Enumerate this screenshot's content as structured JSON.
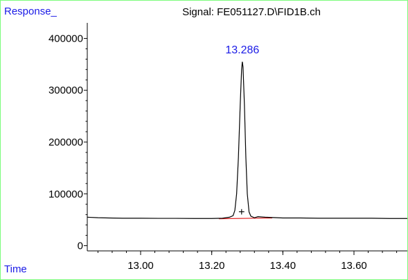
{
  "window": {
    "border_color": "#7CFC7C"
  },
  "chart_data": {
    "type": "line",
    "title": "Signal: FE051127.D\\FID1B.ch",
    "ylabel": "Response_",
    "xlabel": "Time",
    "xlim": [
      12.85,
      13.75
    ],
    "ylim": [
      -10000,
      430000
    ],
    "x_ticks": [
      "13.00",
      "13.20",
      "13.40",
      "13.60"
    ],
    "y_ticks": [
      "0",
      "100000",
      "200000",
      "300000",
      "400000"
    ],
    "grid": false,
    "series": [
      {
        "color": "#000000",
        "x": [
          12.85,
          12.88,
          12.91,
          12.95,
          13.0,
          13.05,
          13.1,
          13.15,
          13.2,
          13.23,
          13.25,
          13.26,
          13.265,
          13.27,
          13.275,
          13.28,
          13.284,
          13.286,
          13.288,
          13.292,
          13.296,
          13.3,
          13.305,
          13.31,
          13.32,
          13.33,
          13.35,
          13.4,
          13.45,
          13.5,
          13.55,
          13.6,
          13.65,
          13.7,
          13.75
        ],
        "y": [
          55000,
          54000,
          53500,
          53000,
          53000,
          52800,
          52800,
          52500,
          52500,
          53000,
          55000,
          58000,
          68000,
          100000,
          170000,
          270000,
          340000,
          355000,
          345000,
          270000,
          170000,
          100000,
          65000,
          57000,
          54000,
          56000,
          55000,
          53500,
          53500,
          53000,
          53000,
          53000,
          53000,
          52500,
          52500
        ]
      }
    ],
    "baseline": {
      "color": "#E02020",
      "x": [
        13.22,
        13.37
      ],
      "y": [
        52000,
        53500
      ]
    },
    "annotations": [
      {
        "text": "13.286",
        "x": 13.286,
        "y": 355000,
        "color": "#1A1AE6"
      }
    ],
    "markers": [
      {
        "x": 13.284,
        "y": 66000,
        "symbol": "+"
      }
    ]
  }
}
